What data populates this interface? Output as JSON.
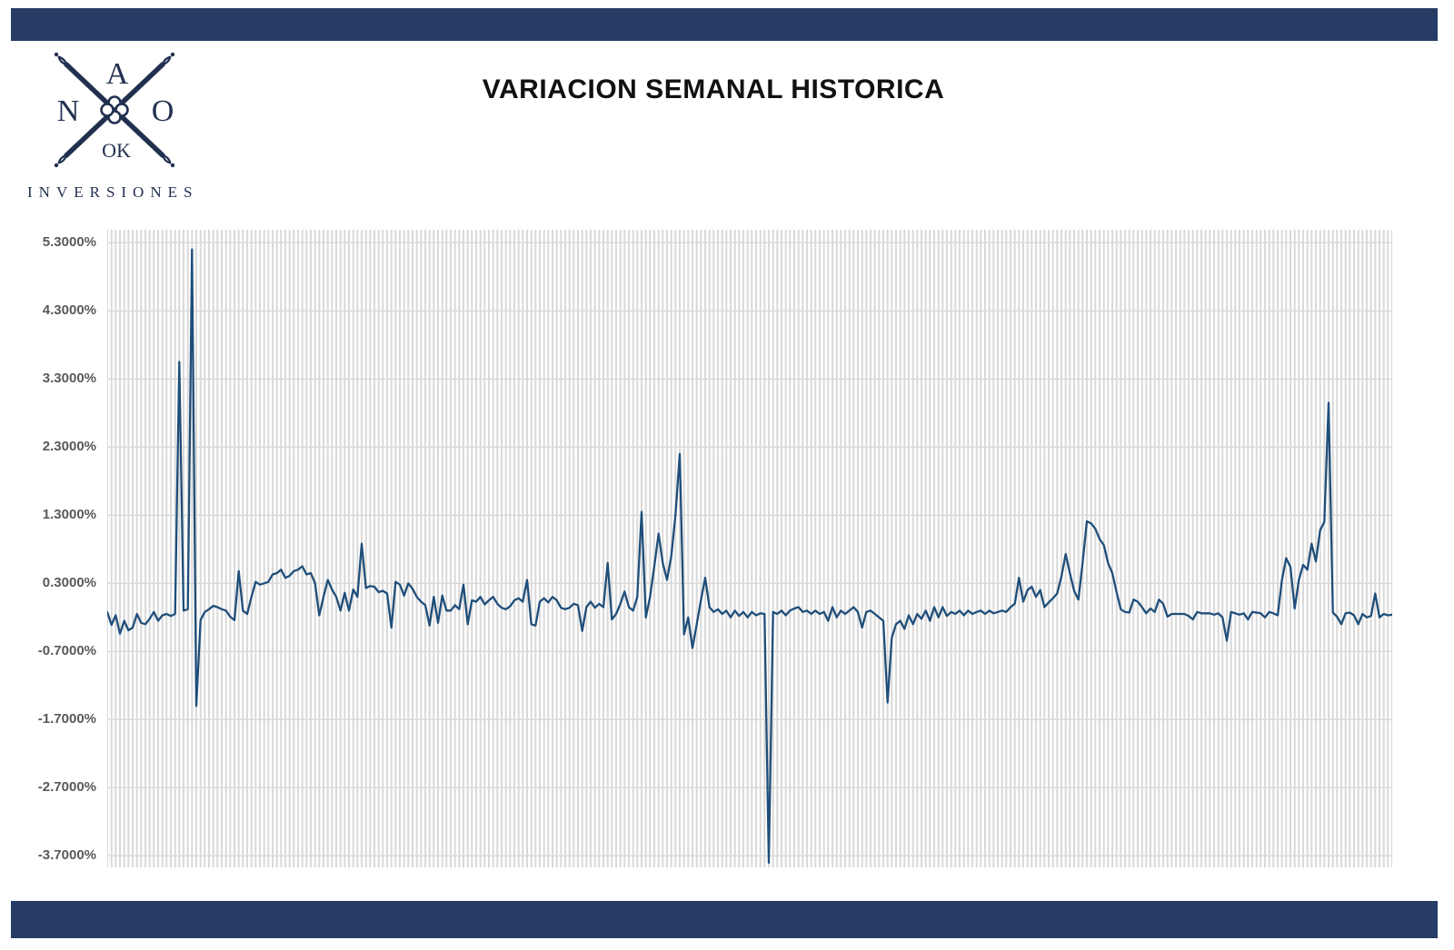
{
  "theme": {
    "navy_bar": "#263c64",
    "logo_navy": "#22304f",
    "line_color": "#1f4e79",
    "grid_color": "#d9d9d9",
    "tick_text": "#595959",
    "title_text": "#111111",
    "background": "#ffffff"
  },
  "header": {
    "title": "VARIACION SEMANAL HISTORICA"
  },
  "logo": {
    "letters": {
      "top": "A",
      "left": "N",
      "right": "O",
      "bottom": "OK"
    },
    "subtitle": "INVERSIONES"
  },
  "chart_data": {
    "type": "line",
    "title": "VARIACION SEMANAL HISTORICA",
    "xlabel": "",
    "ylabel": "",
    "x_tick_labels": [],
    "y_tick_labels": [
      "5.3000%",
      "4.3000%",
      "3.3000%",
      "2.3000%",
      "1.3000%",
      "0.3000%",
      "-0.7000%",
      "-1.7000%",
      "-2.7000%",
      "-3.7000%"
    ],
    "y_ticks": [
      5.3,
      4.3,
      3.3,
      2.3,
      1.3,
      0.3,
      -0.7,
      -1.7,
      -2.7,
      -3.7
    ],
    "ylim": [
      -3.87,
      5.49
    ],
    "grid": {
      "horizontal": true,
      "vertical_per_point": true
    },
    "legend": null,
    "unit": "percent",
    "values": [
      -0.12,
      -0.31,
      -0.17,
      -0.44,
      -0.25,
      -0.39,
      -0.35,
      -0.15,
      -0.28,
      -0.3,
      -0.22,
      -0.12,
      -0.25,
      -0.17,
      -0.15,
      -0.18,
      -0.15,
      3.55,
      -0.1,
      -0.08,
      5.2,
      -1.5,
      -0.24,
      -0.12,
      -0.08,
      -0.03,
      -0.05,
      -0.08,
      -0.1,
      -0.19,
      -0.24,
      0.48,
      -0.1,
      -0.15,
      0.1,
      0.32,
      0.28,
      0.3,
      0.32,
      0.43,
      0.45,
      0.5,
      0.38,
      0.41,
      0.48,
      0.5,
      0.55,
      0.43,
      0.45,
      0.3,
      -0.17,
      0.1,
      0.35,
      0.21,
      0.1,
      -0.1,
      0.16,
      -0.1,
      0.21,
      0.1,
      0.88,
      0.23,
      0.26,
      0.25,
      0.17,
      0.19,
      0.15,
      -0.35,
      0.32,
      0.28,
      0.12,
      0.3,
      0.22,
      0.1,
      0.03,
      -0.02,
      -0.32,
      0.1,
      -0.28,
      0.12,
      -0.1,
      -0.1,
      -0.02,
      -0.08,
      0.28,
      -0.3,
      0.05,
      0.03,
      0.1,
      -0.01,
      0.05,
      0.1,
      0.0,
      -0.06,
      -0.08,
      -0.04,
      0.05,
      0.08,
      0.03,
      0.35,
      -0.3,
      -0.32,
      0.03,
      0.08,
      0.02,
      0.1,
      0.05,
      -0.06,
      -0.08,
      -0.06,
      0.0,
      -0.02,
      -0.4,
      -0.05,
      0.03,
      -0.06,
      0.0,
      -0.05,
      0.6,
      -0.23,
      -0.15,
      0.0,
      0.18,
      -0.05,
      -0.1,
      0.1,
      1.35,
      -0.2,
      0.1,
      0.55,
      1.03,
      0.6,
      0.35,
      0.7,
      1.3,
      2.2,
      -0.45,
      -0.2,
      -0.65,
      -0.3,
      0.05,
      0.38,
      -0.05,
      -0.12,
      -0.08,
      -0.15,
      -0.1,
      -0.2,
      -0.1,
      -0.18,
      -0.12,
      -0.2,
      -0.12,
      -0.17,
      -0.14,
      -0.15,
      -3.8,
      -0.12,
      -0.15,
      -0.1,
      -0.17,
      -0.1,
      -0.07,
      -0.05,
      -0.12,
      -0.1,
      -0.15,
      -0.1,
      -0.15,
      -0.12,
      -0.25,
      -0.05,
      -0.2,
      -0.1,
      -0.15,
      -0.1,
      -0.05,
      -0.12,
      -0.35,
      -0.12,
      -0.1,
      -0.15,
      -0.2,
      -0.25,
      -1.45,
      -0.5,
      -0.3,
      -0.25,
      -0.37,
      -0.17,
      -0.3,
      -0.15,
      -0.22,
      -0.1,
      -0.25,
      -0.05,
      -0.2,
      -0.05,
      -0.18,
      -0.12,
      -0.15,
      -0.1,
      -0.17,
      -0.1,
      -0.15,
      -0.12,
      -0.1,
      -0.15,
      -0.1,
      -0.14,
      -0.12,
      -0.1,
      -0.12,
      -0.05,
      0.0,
      0.38,
      0.03,
      0.2,
      0.25,
      0.1,
      0.2,
      -0.05,
      0.02,
      0.08,
      0.15,
      0.4,
      0.73,
      0.45,
      0.19,
      0.06,
      0.6,
      1.21,
      1.18,
      1.1,
      0.95,
      0.86,
      0.6,
      0.45,
      0.17,
      -0.08,
      -0.12,
      -0.13,
      0.06,
      0.03,
      -0.05,
      -0.14,
      -0.07,
      -0.12,
      0.06,
      0.0,
      -0.19,
      -0.15,
      -0.15,
      -0.15,
      -0.15,
      -0.18,
      -0.23,
      -0.12,
      -0.14,
      -0.14,
      -0.14,
      -0.16,
      -0.14,
      -0.2,
      -0.54,
      -0.12,
      -0.14,
      -0.16,
      -0.14,
      -0.23,
      -0.12,
      -0.13,
      -0.14,
      -0.2,
      -0.12,
      -0.14,
      -0.17,
      0.35,
      0.67,
      0.54,
      -0.07,
      0.35,
      0.57,
      0.5,
      0.88,
      0.62,
      1.08,
      1.2,
      2.95,
      -0.13,
      -0.19,
      -0.3,
      -0.14,
      -0.13,
      -0.17,
      -0.3,
      -0.15,
      -0.2,
      -0.18,
      0.15,
      -0.2,
      -0.15,
      -0.17,
      -0.16
    ]
  }
}
